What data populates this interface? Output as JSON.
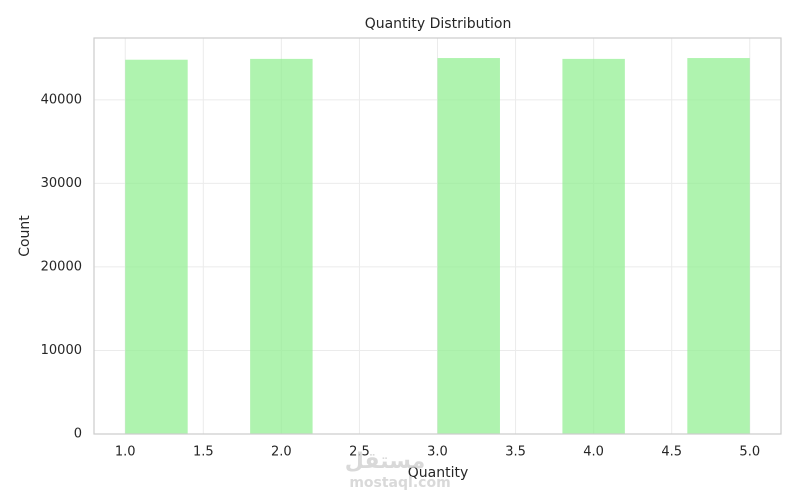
{
  "chart_data": {
    "type": "histogram",
    "title": "Quantity Distribution",
    "x_label": "Quantity",
    "y_label": "Count",
    "bins": [
      1.0,
      1.4,
      1.8,
      2.2,
      2.6,
      3.0,
      3.4,
      3.8,
      4.2,
      4.6,
      5.0
    ],
    "values": [
      44800,
      0,
      44900,
      0,
      0,
      45000,
      0,
      44900,
      0,
      45000
    ],
    "color": "#90ee90",
    "xlim": [
      0.8,
      5.2
    ],
    "ylim": [
      0,
      47400
    ],
    "xticks": [
      {
        "value": 1.0,
        "label": "1.0"
      },
      {
        "value": 1.5,
        "label": "1.5"
      },
      {
        "value": 2.0,
        "label": "2.0"
      },
      {
        "value": 2.5,
        "label": "2.5"
      },
      {
        "value": 3.0,
        "label": "3.0"
      },
      {
        "value": 3.5,
        "label": "3.5"
      },
      {
        "value": 4.0,
        "label": "4.0"
      },
      {
        "value": 4.5,
        "label": "4.5"
      },
      {
        "value": 5.0,
        "label": "5.0"
      }
    ],
    "yticks": [
      0,
      10000,
      20000,
      30000,
      40000
    ],
    "grid": true,
    "watermark": [
      "مستقل",
      "mostaql.com"
    ]
  }
}
